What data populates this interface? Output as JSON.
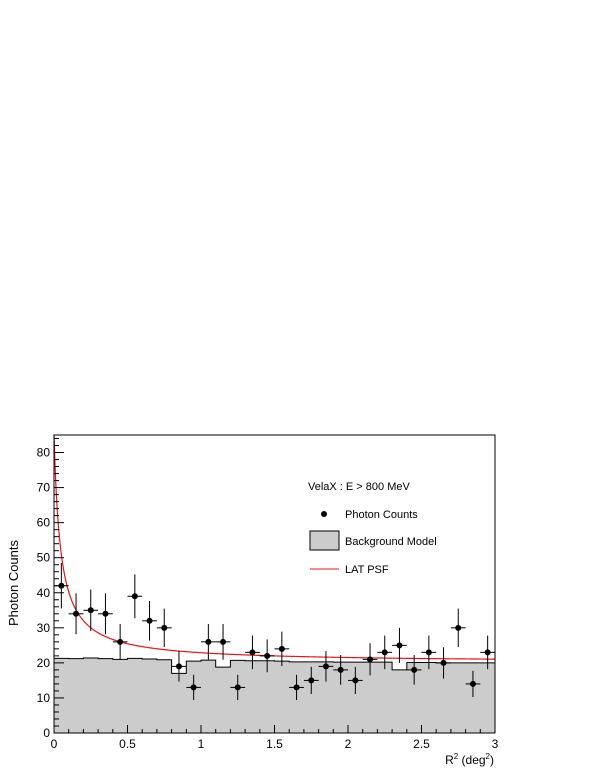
{
  "chart_data": {
    "type": "scatter",
    "title": "VelaX : E > 800 MeV",
    "xlabel_main": "R",
    "xlabel_sup": "2",
    "xlabel_unit_open": " (deg",
    "xlabel_unit_sup": "2",
    "xlabel_unit_close": ")",
    "ylabel": "Photon Counts",
    "xlim": [
      0,
      3
    ],
    "ylim": [
      0,
      85
    ],
    "x_ticks": [
      0,
      0.5,
      1,
      1.5,
      2,
      2.5,
      3
    ],
    "x_tick_labels": [
      "0",
      "0.5",
      "1",
      "1.5",
      "2",
      "2.5",
      "3"
    ],
    "y_ticks": [
      0,
      10,
      20,
      30,
      40,
      50,
      60,
      70,
      80
    ],
    "y_tick_labels": [
      "0",
      "10",
      "20",
      "30",
      "40",
      "50",
      "60",
      "70",
      "80"
    ],
    "grid": false,
    "legend_position": "top-right",
    "legend": {
      "photon_counts": "Photon Counts",
      "background_model": "Background Model",
      "lat_psf": "LAT PSF"
    },
    "colors": {
      "background_fill": "#cccccc",
      "psf_line": "#e8141b",
      "points": "#000000"
    },
    "bin_width": 0.1,
    "photon_counts": {
      "x": [
        0.05,
        0.15,
        0.25,
        0.35,
        0.45,
        0.55,
        0.65,
        0.75,
        0.85,
        0.95,
        1.05,
        1.15,
        1.25,
        1.35,
        1.45,
        1.55,
        1.65,
        1.75,
        1.85,
        1.95,
        2.05,
        2.15,
        2.25,
        2.35,
        2.45,
        2.55,
        2.65,
        2.75,
        2.85,
        2.95
      ],
      "y": [
        42,
        34,
        35,
        34,
        26,
        39,
        32,
        30,
        19,
        13,
        26,
        26,
        13,
        23,
        22,
        24,
        13,
        15,
        19,
        18,
        15,
        21,
        23,
        25,
        18,
        23,
        20,
        30,
        14,
        23
      ]
    },
    "background_model": {
      "bin_edges": [
        0,
        0.1,
        0.2,
        0.3,
        0.4,
        0.5,
        0.6,
        0.7,
        0.8,
        0.9,
        1.0,
        1.1,
        1.2,
        1.3,
        1.4,
        1.5,
        1.6,
        1.7,
        1.8,
        1.9,
        2.0,
        2.1,
        2.2,
        2.3,
        2.4,
        2.5,
        2.6,
        2.7,
        2.8,
        2.9,
        3.0
      ],
      "values": [
        21.3,
        21.2,
        21.4,
        21.2,
        21.0,
        21.3,
        21.1,
        20.9,
        17.0,
        20.5,
        20.8,
        18.8,
        20.7,
        20.6,
        20.6,
        20.5,
        20.3,
        20.3,
        20.3,
        20.2,
        20.2,
        20.2,
        20.2,
        18.0,
        20.1,
        20.1,
        20.0,
        20.0,
        20.0,
        20.0
      ]
    },
    "lat_psf": {
      "baseline": 20.1,
      "amplitude": 65,
      "scale": 0.045
    }
  }
}
